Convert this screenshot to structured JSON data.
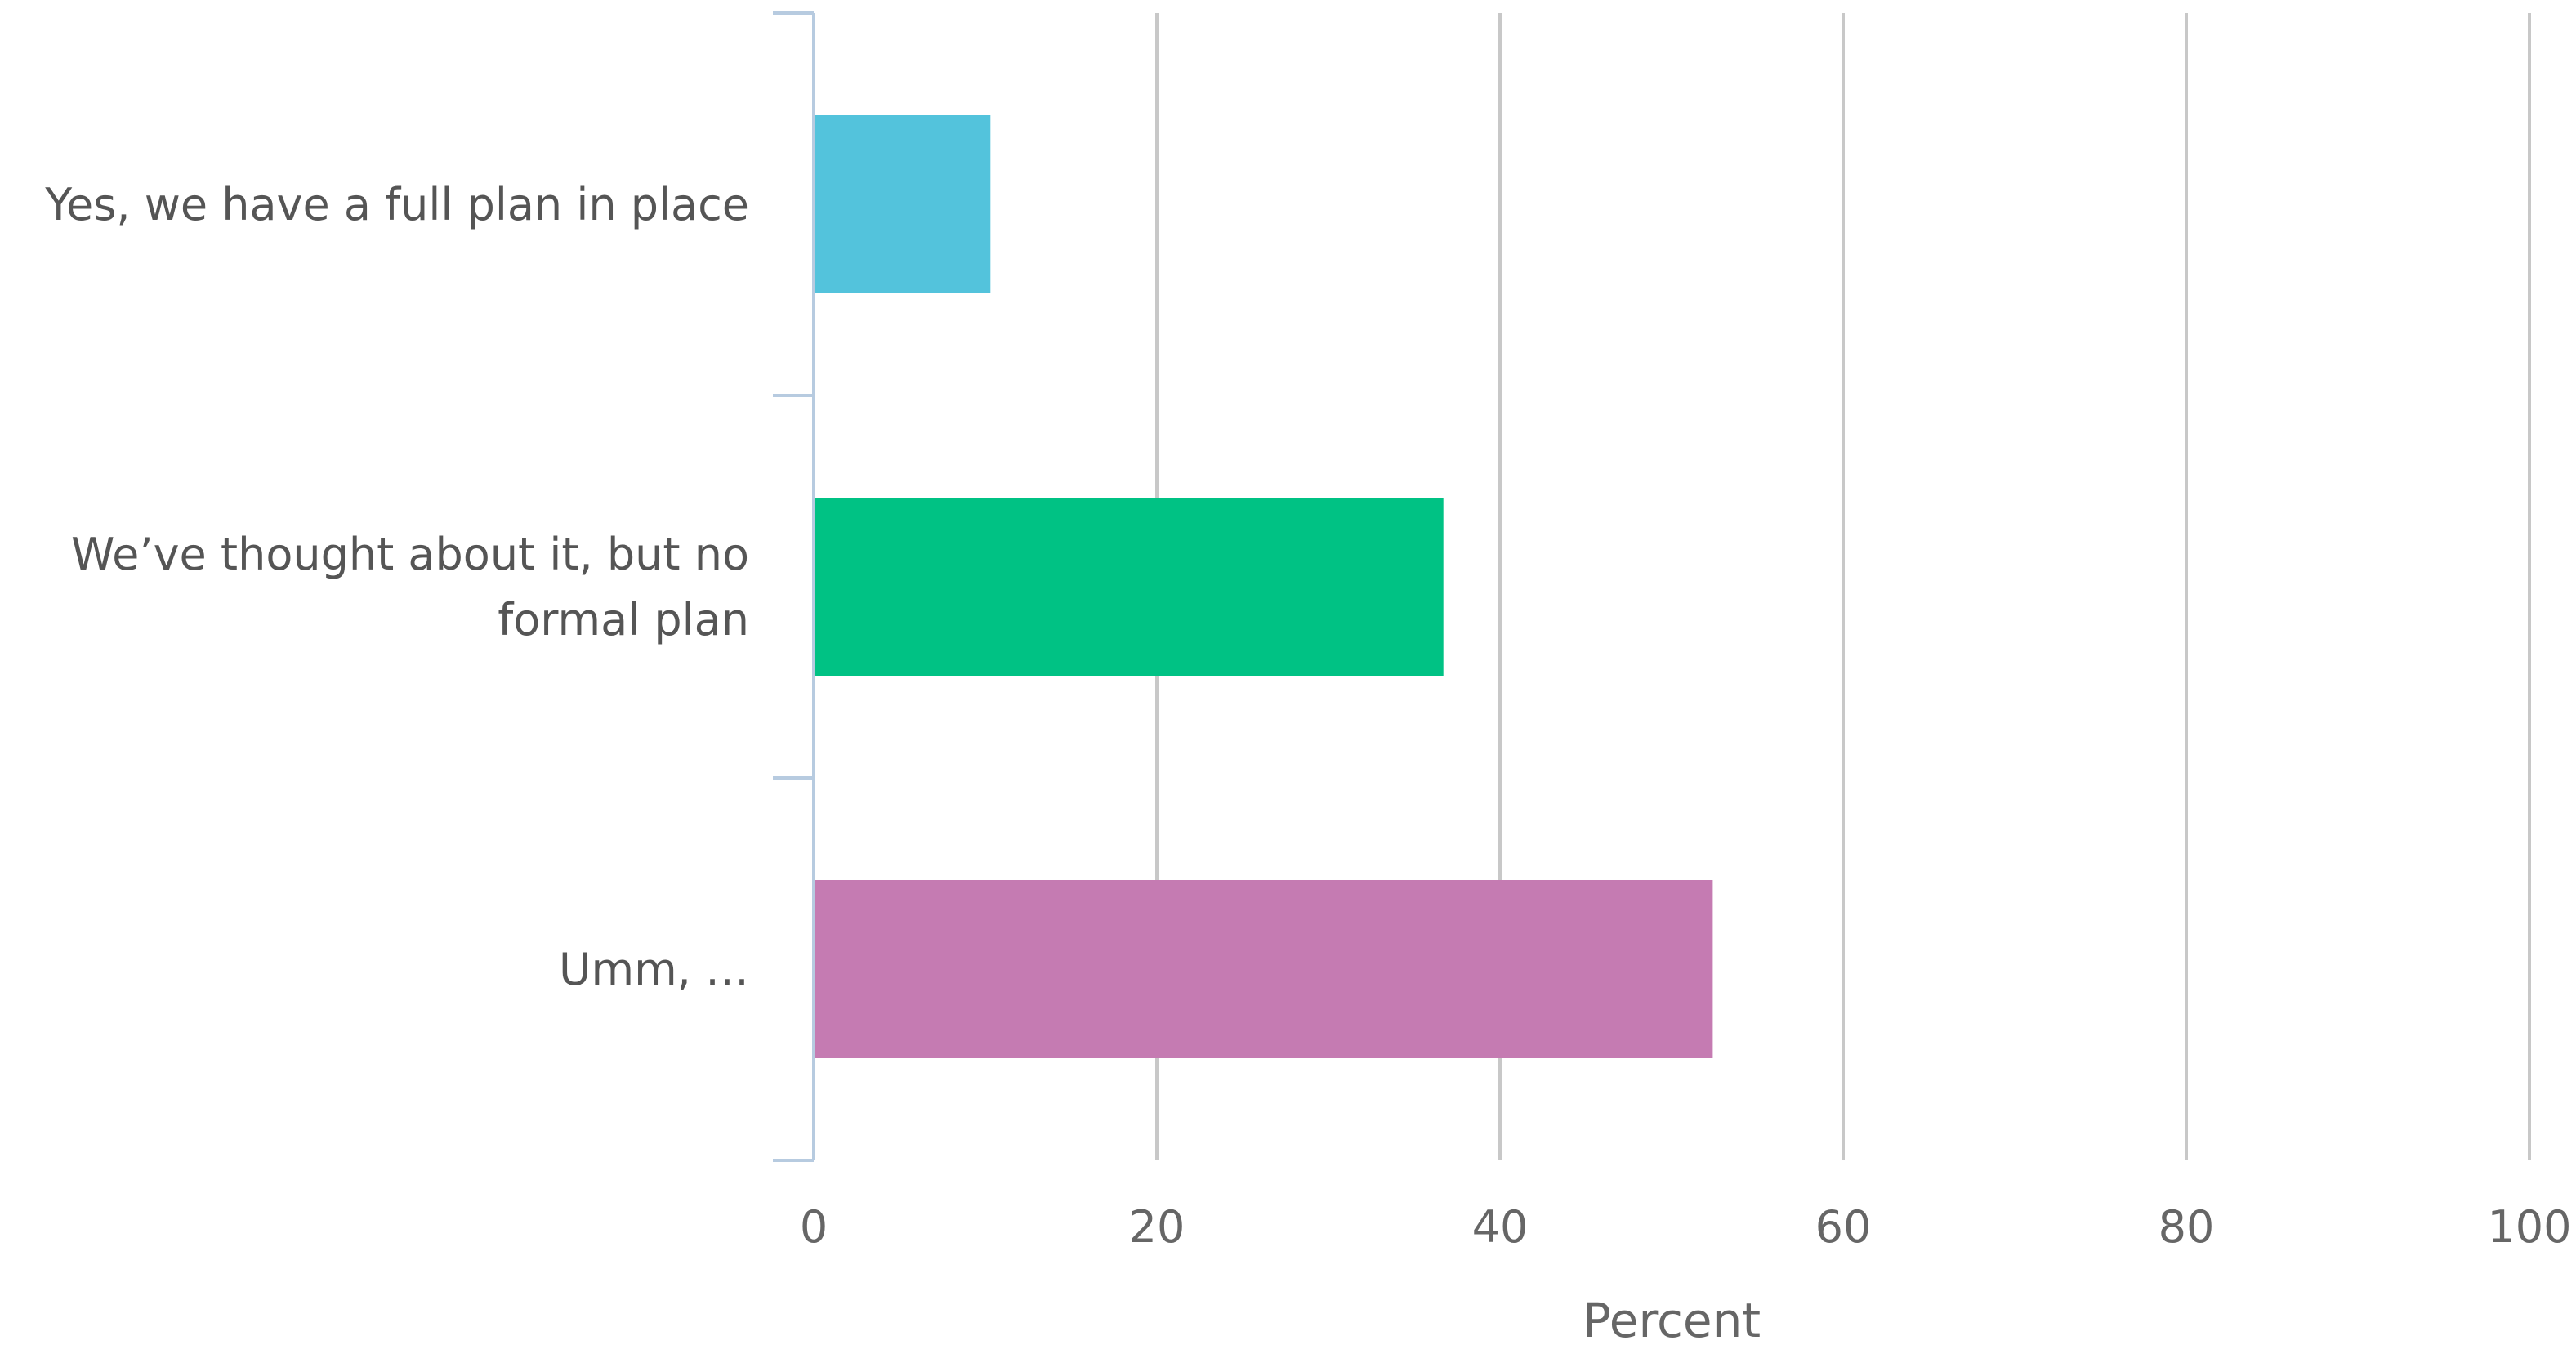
{
  "chart_data": {
    "type": "bar",
    "orientation": "horizontal",
    "categories": [
      [
        "Yes, we have a full plan in place"
      ],
      [
        "We’ve thought about it, but no",
        "formal plan"
      ],
      [
        "Umm, …"
      ]
    ],
    "values": [
      10.3,
      36.7,
      52.4
    ],
    "colors": [
      "#53c3dc",
      "#00c284",
      "#c57bb2"
    ],
    "xlabel": "Percent",
    "xlim": [
      0,
      100
    ],
    "xticks": [
      "0",
      "20",
      "40",
      "60",
      "80",
      "100"
    ],
    "grid": true,
    "legend": "none"
  }
}
